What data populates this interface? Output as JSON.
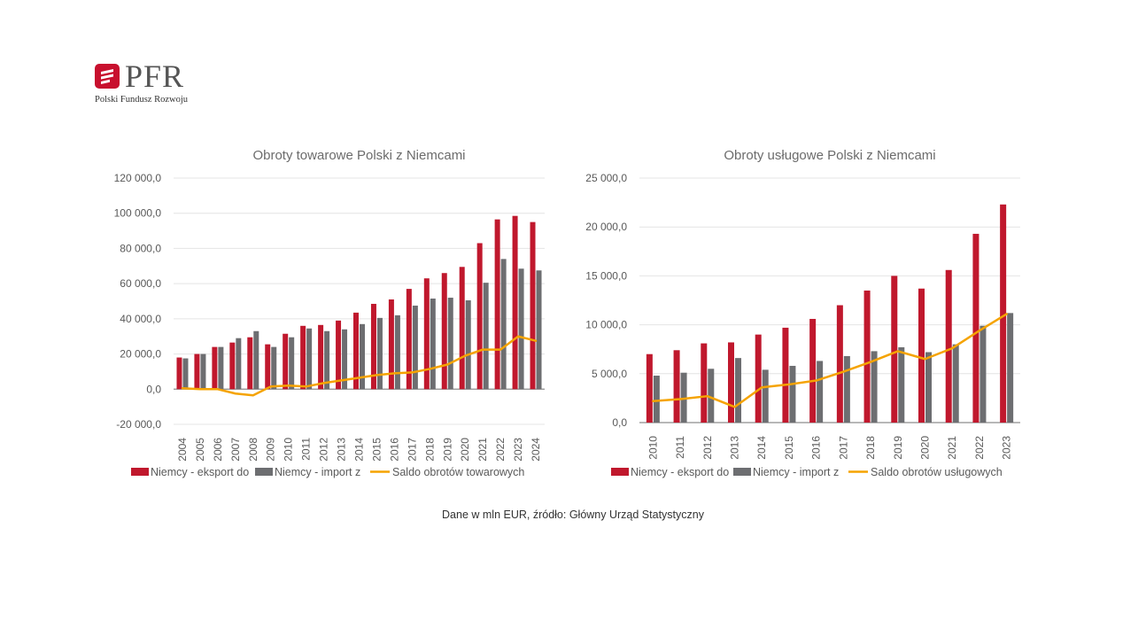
{
  "brand": {
    "name": "PFR",
    "subtitle": "Polski Fundusz Rozwoju",
    "accent": "#c8102e"
  },
  "colors": {
    "export": "#c0182d",
    "import": "#6d6e71",
    "saldo": "#f5a300"
  },
  "source_note": "Dane w mln EUR, źródło: Główny Urząd Statystyczny",
  "chart_data": [
    {
      "type": "bar",
      "title": "Obroty towarowe Polski z Niemcami",
      "ylim": [
        -20000,
        120000
      ],
      "yticks": [
        -20000,
        0,
        20000,
        40000,
        60000,
        80000,
        100000,
        120000
      ],
      "ytick_labels": [
        "-20 000,0",
        "0,0",
        "20 000,0",
        "40 000,0",
        "60 000,0",
        "80 000,0",
        "100 000,0",
        "120 000,0"
      ],
      "grid": true,
      "legend": "bottom",
      "categories": [
        "2004",
        "2005",
        "2006",
        "2007",
        "2008",
        "2009",
        "2010",
        "2011",
        "2012",
        "2013",
        "2014",
        "2015",
        "2016",
        "2017",
        "2018",
        "2019",
        "2020",
        "2021",
        "2022",
        "2023",
        "2024"
      ],
      "series": [
        {
          "name": "Niemcy - eksport do",
          "kind": "bar",
          "color": "#c0182d",
          "values": [
            18000,
            20000,
            24000,
            26500,
            29500,
            25500,
            31500,
            36000,
            36500,
            39000,
            43500,
            48500,
            51000,
            57000,
            63000,
            66000,
            69500,
            83000,
            96500,
            98500,
            95000
          ]
        },
        {
          "name": "Niemcy - import z",
          "kind": "bar",
          "color": "#6d6e71",
          "values": [
            17500,
            20000,
            24000,
            29000,
            33000,
            24000,
            29500,
            34500,
            33000,
            34000,
            37000,
            40500,
            42000,
            47500,
            51500,
            52000,
            50500,
            60500,
            74000,
            68500,
            67500
          ]
        },
        {
          "name": "Saldo obrotów towarowych",
          "kind": "line",
          "color": "#f5a300",
          "values": [
            500,
            0,
            0,
            -2500,
            -3500,
            1500,
            2000,
            1500,
            3500,
            5000,
            6500,
            8000,
            9000,
            9500,
            11500,
            14000,
            19000,
            22500,
            22500,
            30000,
            27500
          ]
        }
      ]
    },
    {
      "type": "bar",
      "title": "Obroty usługowe Polski z Niemcami",
      "ylim": [
        0,
        25000
      ],
      "yticks": [
        0,
        5000,
        10000,
        15000,
        20000,
        25000
      ],
      "ytick_labels": [
        "0,0",
        "5 000,0",
        "10 000,0",
        "15 000,0",
        "20 000,0",
        "25 000,0"
      ],
      "grid": true,
      "legend": "bottom",
      "categories": [
        "2010",
        "2011",
        "2012",
        "2013",
        "2014",
        "2015",
        "2016",
        "2017",
        "2018",
        "2019",
        "2020",
        "2021",
        "2022",
        "2023"
      ],
      "series": [
        {
          "name": "Niemcy - eksport do",
          "kind": "bar",
          "color": "#c0182d",
          "values": [
            7000,
            7400,
            8100,
            8200,
            9000,
            9700,
            10600,
            12000,
            13500,
            15000,
            13700,
            15600,
            19300,
            22300
          ]
        },
        {
          "name": "Niemcy - import z",
          "kind": "bar",
          "color": "#6d6e71",
          "values": [
            4800,
            5100,
            5500,
            6600,
            5400,
            5800,
            6300,
            6800,
            7300,
            7700,
            7200,
            8000,
            9900,
            11200
          ]
        },
        {
          "name": "Saldo obrotów usługowych",
          "kind": "line",
          "color": "#f5a300",
          "values": [
            2200,
            2400,
            2700,
            1600,
            3600,
            3900,
            4300,
            5200,
            6200,
            7300,
            6500,
            7600,
            9400,
            11100
          ]
        }
      ]
    }
  ]
}
